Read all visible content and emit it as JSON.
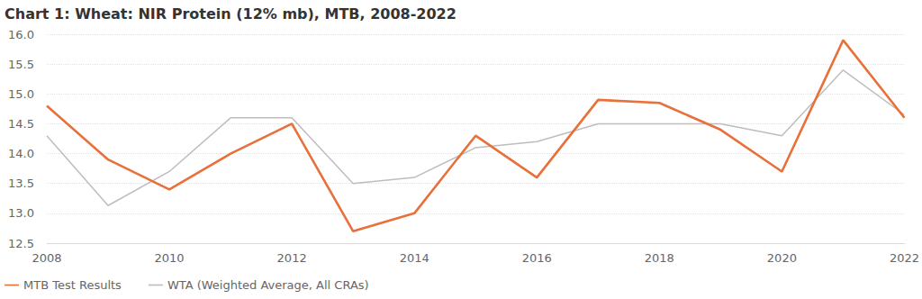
{
  "chart_data": {
    "type": "line",
    "title": "Chart 1: Wheat: NIR Protein (12% mb), MTB, 2008-2022",
    "x": [
      2008,
      2009,
      2010,
      2011,
      2012,
      2013,
      2014,
      2015,
      2016,
      2017,
      2018,
      2019,
      2020,
      2021,
      2022
    ],
    "series": [
      {
        "name": "MTB Test Results",
        "color": "#e8703a",
        "values": [
          14.8,
          13.9,
          13.4,
          14.0,
          14.5,
          12.7,
          13.0,
          14.3,
          13.6,
          14.9,
          14.85,
          14.4,
          13.7,
          15.9,
          14.6
        ]
      },
      {
        "name": "WTA (Weighted Average, All CRAs)",
        "color": "#bdbdbd",
        "values": [
          14.3,
          13.13,
          13.7,
          14.6,
          14.6,
          13.5,
          13.6,
          14.1,
          14.2,
          14.5,
          14.5,
          14.5,
          14.3,
          15.4,
          14.65
        ]
      }
    ],
    "xlim": [
      2008,
      2022
    ],
    "xticks": [
      2008,
      2010,
      2012,
      2014,
      2016,
      2018,
      2020,
      2022
    ],
    "ylim": [
      12.5,
      16
    ],
    "yticks": [
      12.5,
      {
        "value": 13,
        "label": "13.0"
      },
      13.5,
      {
        "value": 14,
        "label": "14.0"
      },
      14.5,
      {
        "value": 15,
        "label": "15.0"
      },
      15.5,
      {
        "value": 16,
        "label": "16.0"
      }
    ],
    "grid": true,
    "legend": "bottom-left"
  }
}
